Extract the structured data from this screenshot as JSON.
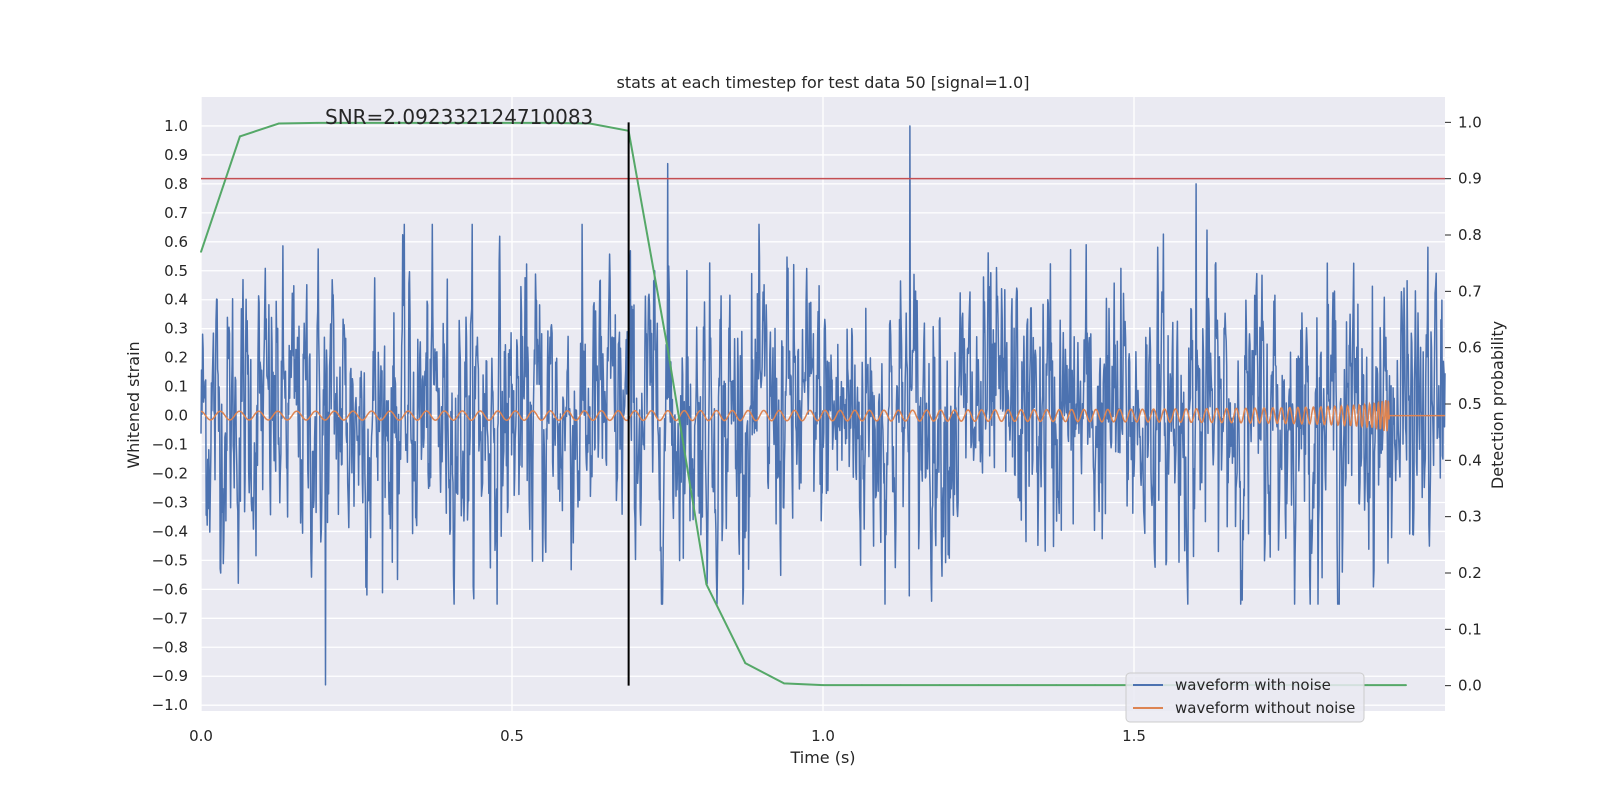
{
  "chart_data": {
    "type": "line",
    "title": "stats at each timestep for test data 50 [signal=1.0]",
    "annotation": "SNR=2.092332124710083",
    "xlabel": "Time (s)",
    "ylabel_left": "Whitened strain",
    "ylabel_right": "Detection probability",
    "xlim": [
      0.0,
      2.0
    ],
    "ylim_left": [
      -1.02,
      1.1
    ],
    "ylim_right": [
      -0.045,
      1.045
    ],
    "grid": true,
    "legend_position": "lower-right",
    "x_ticks": [
      {
        "v": 0.0,
        "label": "0.0"
      },
      {
        "v": 0.5,
        "label": "0.5"
      },
      {
        "v": 1.0,
        "label": "1.0"
      },
      {
        "v": 1.5,
        "label": "1.5"
      }
    ],
    "y_left_ticks": [
      {
        "v": 1.0,
        "label": "1.0"
      },
      {
        "v": 0.9,
        "label": "0.9"
      },
      {
        "v": 0.8,
        "label": "0.8"
      },
      {
        "v": 0.7,
        "label": "0.7"
      },
      {
        "v": 0.6,
        "label": "0.6"
      },
      {
        "v": 0.5,
        "label": "0.5"
      },
      {
        "v": 0.4,
        "label": "0.4"
      },
      {
        "v": 0.3,
        "label": "0.3"
      },
      {
        "v": 0.2,
        "label": "0.2"
      },
      {
        "v": 0.1,
        "label": "0.1"
      },
      {
        "v": 0.0,
        "label": "0.0"
      },
      {
        "v": -0.1,
        "label": "−0.1"
      },
      {
        "v": -0.2,
        "label": "−0.2"
      },
      {
        "v": -0.3,
        "label": "−0.3"
      },
      {
        "v": -0.4,
        "label": "−0.4"
      },
      {
        "v": -0.5,
        "label": "−0.5"
      },
      {
        "v": -0.6,
        "label": "−0.6"
      },
      {
        "v": -0.7,
        "label": "−0.7"
      },
      {
        "v": -0.8,
        "label": "−0.8"
      },
      {
        "v": -0.9,
        "label": "−0.9"
      },
      {
        "v": -1.0,
        "label": "−1.0"
      }
    ],
    "y_right_ticks": [
      {
        "v": 1.0,
        "label": "1.0"
      },
      {
        "v": 0.9,
        "label": "0.9"
      },
      {
        "v": 0.8,
        "label": "0.8"
      },
      {
        "v": 0.7,
        "label": "0.7"
      },
      {
        "v": 0.6,
        "label": "0.6"
      },
      {
        "v": 0.5,
        "label": "0.5"
      },
      {
        "v": 0.4,
        "label": "0.4"
      },
      {
        "v": 0.3,
        "label": "0.3"
      },
      {
        "v": 0.2,
        "label": "0.2"
      },
      {
        "v": 0.1,
        "label": "0.1"
      },
      {
        "v": 0.0,
        "label": "0.0"
      }
    ],
    "series": [
      {
        "name": "waveform with noise",
        "color": "#4c72b0",
        "axis": "left",
        "kind": "noise",
        "x_range": [
          0.0,
          2.0
        ],
        "y_range_observed": [
          -0.93,
          1.0
        ],
        "notable_peaks": [
          {
            "x": 0.2,
            "y": -0.93
          },
          {
            "x": 0.75,
            "y": 0.87
          },
          {
            "x": 1.14,
            "y": 1.0
          },
          {
            "x": 1.6,
            "y": 0.8
          }
        ]
      },
      {
        "name": "waveform without noise",
        "color": "#dd8452",
        "axis": "left",
        "kind": "chirp",
        "x_range": [
          0.0,
          2.0
        ],
        "amplitude_start": 0.015,
        "amplitude_peak": 0.055,
        "merger_x": 1.91
      },
      {
        "color": "#55a868",
        "axis": "right",
        "kind": "probability",
        "x": [
          0.0,
          0.0625,
          0.125,
          0.1875,
          0.25,
          0.3125,
          0.375,
          0.4375,
          0.5,
          0.5625,
          0.625,
          0.6875,
          0.75,
          0.8125,
          0.875,
          0.9375,
          1.0,
          1.0625,
          1.125,
          1.1875,
          1.25,
          1.3125,
          1.375,
          1.4375,
          1.5,
          1.5625,
          1.625,
          1.6875,
          1.75,
          1.8125,
          1.875,
          1.9375
        ],
        "y": [
          0.77,
          0.975,
          0.998,
          0.999,
          0.999,
          0.999,
          0.999,
          0.999,
          0.999,
          0.999,
          0.998,
          0.985,
          0.6,
          0.18,
          0.04,
          0.004,
          0.001,
          0.001,
          0.001,
          0.001,
          0.001,
          0.001,
          0.001,
          0.001,
          0.001,
          0.001,
          0.001,
          0.001,
          0.001,
          0.001,
          0.001,
          0.001
        ]
      }
    ],
    "threshold_line": {
      "axis": "right",
      "value": 0.9,
      "color": "#c44e52"
    },
    "vertical_line": {
      "x": 0.6875,
      "y_from_right": 0.0,
      "y_to_right": 1.0,
      "color": "#000000"
    }
  }
}
